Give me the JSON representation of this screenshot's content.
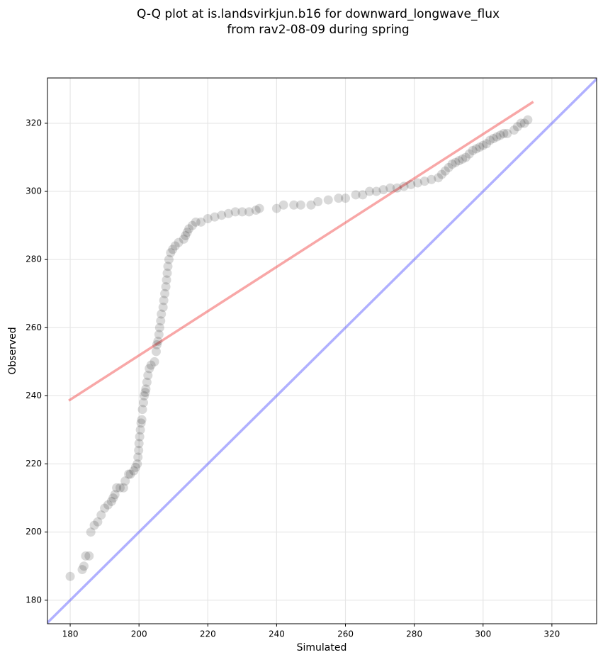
{
  "chart_data": {
    "type": "scatter",
    "title": [
      "Q-Q plot at is.landsvirkjun.b16 for downward_longwave_flux",
      "from rav2-08-09 during spring"
    ],
    "x_label": "Simulated",
    "y_label": "Observed",
    "xlim": [
      173.4,
      333
    ],
    "ylim": [
      173.1,
      333.3
    ],
    "xticks": [
      180,
      200,
      220,
      240,
      260,
      280,
      300,
      320
    ],
    "yticks": [
      180,
      200,
      220,
      240,
      260,
      280,
      300,
      320
    ],
    "grid": true,
    "point_color": "rgba(0,0,0,0.15)",
    "x": [
      180,
      183.5,
      184,
      184.5,
      185.5,
      186,
      187,
      188,
      189,
      190,
      191,
      192,
      192.5,
      193,
      193.5,
      194.5,
      195.5,
      196,
      197,
      197.5,
      198.5,
      199,
      199.5,
      199.7,
      199.9,
      200,
      200.2,
      200.4,
      200.6,
      200.8,
      201,
      201.3,
      201.5,
      201.8,
      202,
      202.3,
      202.6,
      203,
      203.5,
      204.5,
      205,
      205.2,
      205.5,
      205.8,
      206,
      206.3,
      206.5,
      207,
      207.2,
      207.5,
      207.8,
      208,
      208.2,
      208.4,
      208.7,
      209.2,
      209.8,
      210.5,
      211.5,
      213,
      213.5,
      214,
      214.5,
      215.5,
      216.5,
      218,
      220,
      222,
      224,
      226,
      228,
      230,
      232,
      234,
      235,
      240,
      242,
      245,
      247,
      250,
      252,
      255,
      258,
      260,
      263,
      265,
      267,
      269,
      271,
      273,
      275,
      277,
      279,
      281,
      283,
      285,
      287,
      288,
      289,
      290,
      291,
      292,
      293,
      294,
      295,
      296,
      297,
      298,
      299,
      300,
      301,
      302,
      303,
      304,
      305,
      306,
      307,
      309,
      310,
      311,
      312,
      313
    ],
    "y": [
      187,
      189,
      190,
      193,
      193,
      200,
      202,
      203,
      205,
      207,
      208,
      209,
      210,
      211,
      213,
      213,
      213,
      215,
      217,
      217,
      218,
      219,
      220,
      222,
      224,
      226,
      228,
      230,
      232,
      233,
      236,
      238,
      240,
      241,
      242,
      244,
      246,
      248,
      249,
      250,
      253,
      255,
      256,
      258,
      260,
      262,
      264,
      266,
      268,
      270,
      272,
      274,
      276,
      278,
      280,
      282,
      283,
      284,
      285,
      286,
      287,
      288,
      289,
      290,
      291,
      291,
      292,
      292.5,
      293,
      293.5,
      294,
      294,
      294,
      294.5,
      295,
      295,
      296,
      296,
      296,
      296,
      297,
      297.5,
      298,
      298,
      299,
      299,
      300,
      300,
      300.5,
      301,
      301,
      301.5,
      302,
      302.5,
      303,
      303.5,
      304,
      305,
      306,
      307,
      308,
      308.5,
      309,
      309.5,
      310,
      311,
      312,
      312.5,
      313,
      313.5,
      314,
      315,
      315.5,
      316,
      316.5,
      317,
      317,
      318,
      319,
      320,
      320,
      321
    ],
    "lines": [
      {
        "color": "rgba(240,60,60,0.45)",
        "x": [
          179.6,
          314.6
        ],
        "y": [
          238.6,
          326.3
        ]
      },
      {
        "color": "rgba(80,80,255,0.45)",
        "x": [
          173.4,
          333
        ],
        "y": [
          173.4,
          333
        ]
      }
    ]
  }
}
